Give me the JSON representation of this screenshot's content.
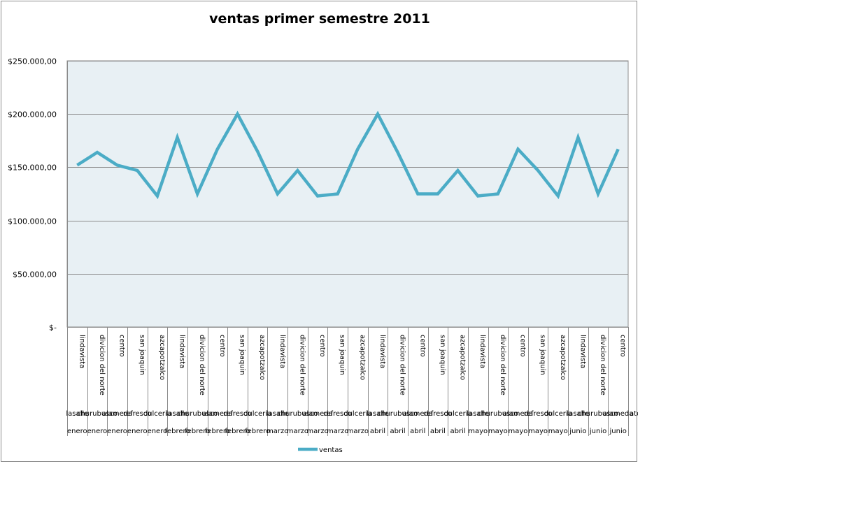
{
  "chart_data": {
    "type": "line",
    "title": "ventas primer semestre 2011",
    "xlabel": "",
    "ylabel": "",
    "ylim": [
      0,
      250000
    ],
    "yticks": [
      "$-",
      "$50.000,00",
      "$100.000,00",
      "$150.000,00",
      "$200.000,00",
      "$250.000,00"
    ],
    "ytick_values": [
      0,
      50000,
      100000,
      150000,
      200000,
      250000
    ],
    "grid": true,
    "legend_position": "bottom",
    "colors": {
      "line": "#4bacc6",
      "plot_bg": "#e8f0f4",
      "grid": "#8c8c8c"
    },
    "categories": [
      {
        "branch": "lindavista",
        "group": "lasalle",
        "month": "enero"
      },
      {
        "branch": "divicion del norte",
        "group": "churubusco",
        "month": "enero"
      },
      {
        "branch": "centro",
        "group": "alameda",
        "month": "enero"
      },
      {
        "branch": "san joaquin",
        "group": "refresco",
        "month": "enero"
      },
      {
        "branch": "azcapotzalco",
        "group": "dulceria",
        "month": "enero"
      },
      {
        "branch": "lindavista",
        "group": "lasalle",
        "month": "febrero"
      },
      {
        "branch": "divicion del norte",
        "group": "churubusco",
        "month": "febrero"
      },
      {
        "branch": "centro",
        "group": "alameda",
        "month": "febrero"
      },
      {
        "branch": "san joaquin",
        "group": "refresco",
        "month": "febrero"
      },
      {
        "branch": "azcapotzalco",
        "group": "dulceria",
        "month": "febrero"
      },
      {
        "branch": "lindavista",
        "group": "lasalle",
        "month": "marzo"
      },
      {
        "branch": "divicion del norte",
        "group": "churubusco",
        "month": "marzo"
      },
      {
        "branch": "centro",
        "group": "alameda",
        "month": "marzo"
      },
      {
        "branch": "san joaquin",
        "group": "refresco",
        "month": "marzo"
      },
      {
        "branch": "azcapotzalco",
        "group": "dulceria",
        "month": "marzo"
      },
      {
        "branch": "lindavista",
        "group": "lasalle",
        "month": "abril"
      },
      {
        "branch": "divicion del norte",
        "group": "churubusco",
        "month": "abril"
      },
      {
        "branch": "centro",
        "group": "alameda",
        "month": "abril"
      },
      {
        "branch": "san joaquin",
        "group": "refresco",
        "month": "abril"
      },
      {
        "branch": "azcapotzalco",
        "group": "dulceria",
        "month": "abril"
      },
      {
        "branch": "lindavista",
        "group": "lasalle",
        "month": "mayo"
      },
      {
        "branch": "divicion del norte",
        "group": "churubusco",
        "month": "mayo"
      },
      {
        "branch": "centro",
        "group": "alameda",
        "month": "mayo"
      },
      {
        "branch": "san joaquin",
        "group": "refresco",
        "month": "mayo"
      },
      {
        "branch": "azcapotzalco",
        "group": "dulceria",
        "month": "mayo"
      },
      {
        "branch": "lindavista",
        "group": "lasalle",
        "month": "junio"
      },
      {
        "branch": "divicion del norte",
        "group": "churubusco",
        "month": "junio"
      },
      {
        "branch": "centro",
        "group": "alameda",
        "month": "junio"
      }
    ],
    "series": [
      {
        "name": "ventas",
        "values": [
          152000,
          164000,
          152000,
          147000,
          123000,
          178000,
          125000,
          167000,
          200000,
          165000,
          125000,
          147000,
          123000,
          125000,
          167000,
          200000,
          164000,
          125000,
          125000,
          147000,
          123000,
          125000,
          167000,
          147000,
          123000,
          178000,
          125000,
          167000
        ]
      }
    ],
    "trailing_label": "ates"
  }
}
